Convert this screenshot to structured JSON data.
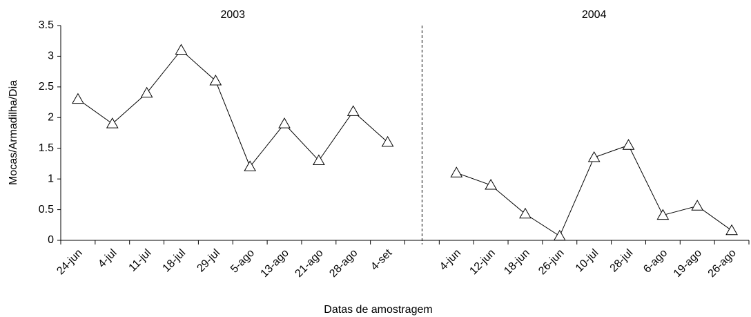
{
  "chart_data": {
    "type": "line",
    "x_label": "Datas de amostragem",
    "y_label": "Mocas/Armadilha/Dia",
    "annotations": [
      "2003",
      "2004"
    ],
    "categories": [
      "24-jun",
      "4-jul",
      "11-jul",
      "18-jul",
      "29-jul",
      "5-ago",
      "13-ago",
      "21-ago",
      "28-ago",
      "4-set",
      null,
      "4-jun",
      "12-jun",
      "18-jun",
      "26-jun",
      "10-jul",
      "28-jul",
      "6-ago",
      "19-ago",
      "26-ago"
    ],
    "series": [
      {
        "color": "#000000",
        "marker": "triangle",
        "values": [
          2.3,
          1.9,
          2.4,
          3.1,
          2.6,
          1.2,
          1.9,
          1.3,
          2.1,
          1.6,
          null,
          1.1,
          0.9,
          0.43,
          0.07,
          1.35,
          1.55,
          0.41,
          0.56,
          0.16
        ]
      }
    ],
    "ylim": [
      0,
      3.5
    ],
    "yticks": [
      0,
      0.5,
      1,
      1.5,
      2,
      2.5,
      3,
      3.5
    ],
    "grid": false
  }
}
